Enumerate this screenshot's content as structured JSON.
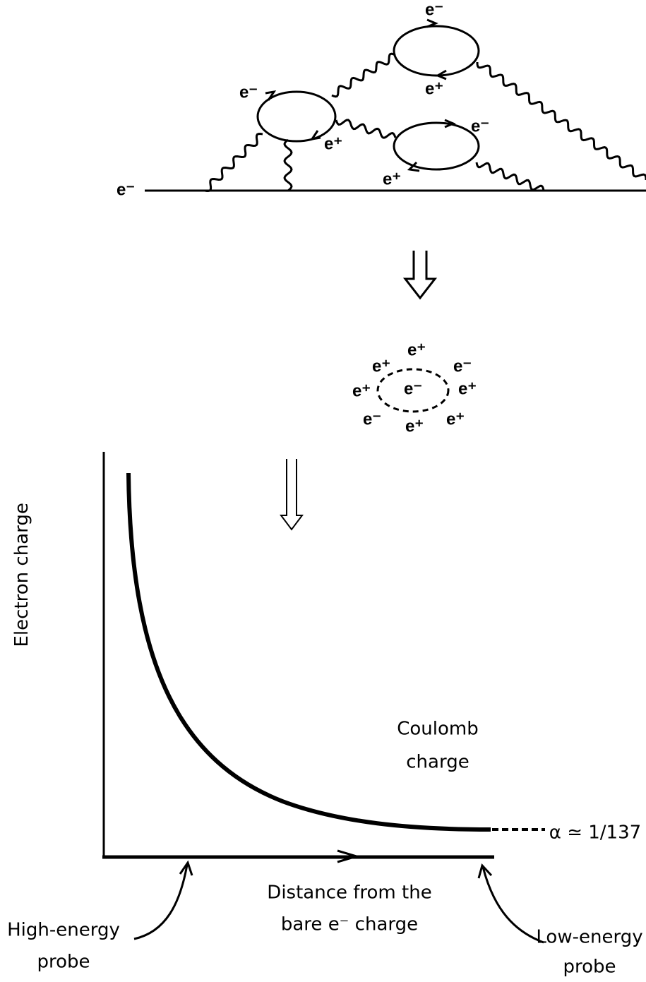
{
  "feynman": {
    "labels": [
      "e⁻",
      "e⁺",
      "e⁻",
      "e⁺",
      "e⁻",
      "e⁺",
      "e⁻"
    ]
  },
  "cloud": {
    "labels": [
      "e⁺",
      "e⁺",
      "e⁻",
      "e⁺",
      "e⁻",
      "e⁺",
      "e⁻",
      "e⁺",
      "e⁺"
    ]
  },
  "plot": {
    "y_label": "Electron charge",
    "curve_label": [
      "Coulomb",
      "charge"
    ],
    "limit_label": "α ≃ 1/137",
    "x_label": [
      "Distance from the",
      "bare e⁻ charge"
    ],
    "left_probe": [
      "High-energy",
      "probe"
    ],
    "right_probe": [
      "Low-energy",
      "probe"
    ]
  }
}
